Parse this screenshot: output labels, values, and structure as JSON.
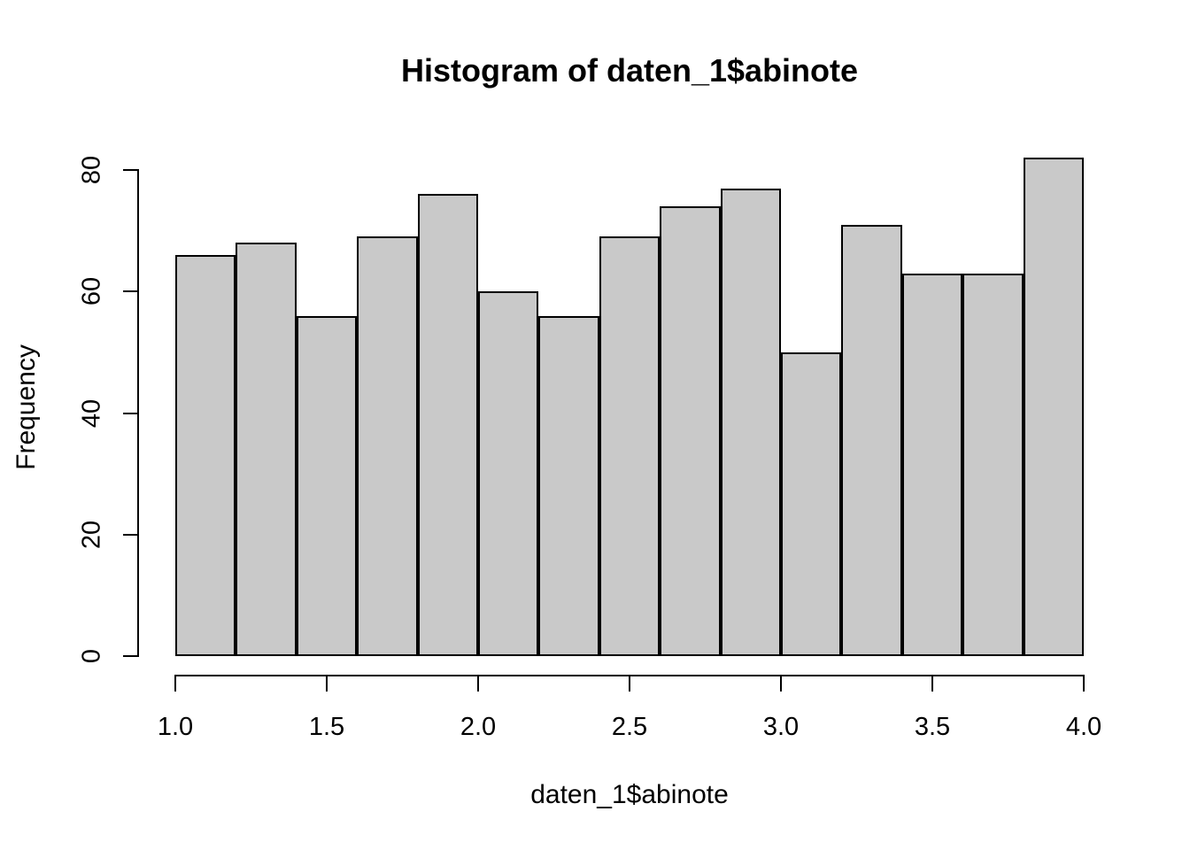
{
  "chart_data": {
    "type": "bar",
    "subtype": "histogram",
    "title": "Histogram of daten_1$abinote",
    "xlabel": "daten_1$abinote",
    "ylabel": "Frequency",
    "bin_edges": [
      1.0,
      1.2,
      1.4,
      1.6,
      1.8,
      2.0,
      2.2,
      2.4,
      2.6,
      2.8,
      3.0,
      3.2,
      3.4,
      3.6,
      3.8,
      4.0
    ],
    "counts": [
      66,
      68,
      56,
      69,
      76,
      60,
      56,
      69,
      74,
      77,
      50,
      71,
      63,
      63,
      82
    ],
    "xlim": [
      1.0,
      4.0
    ],
    "ylim": [
      0,
      80
    ],
    "x_tick_values": [
      1.0,
      1.5,
      2.0,
      2.5,
      3.0,
      3.5,
      4.0
    ],
    "x_tick_labels": [
      "1.0",
      "1.5",
      "2.0",
      "2.5",
      "3.0",
      "3.5",
      "4.0"
    ],
    "y_tick_values": [
      0,
      20,
      40,
      60,
      80
    ],
    "y_tick_labels": [
      "0",
      "20",
      "40",
      "60",
      "80"
    ],
    "grid": false,
    "legend": "none",
    "colors": {
      "bar_fill": "#C9C9C9",
      "bar_border": "#000000",
      "axis": "#000000",
      "text": "#000000",
      "background": "#FFFFFF"
    }
  }
}
